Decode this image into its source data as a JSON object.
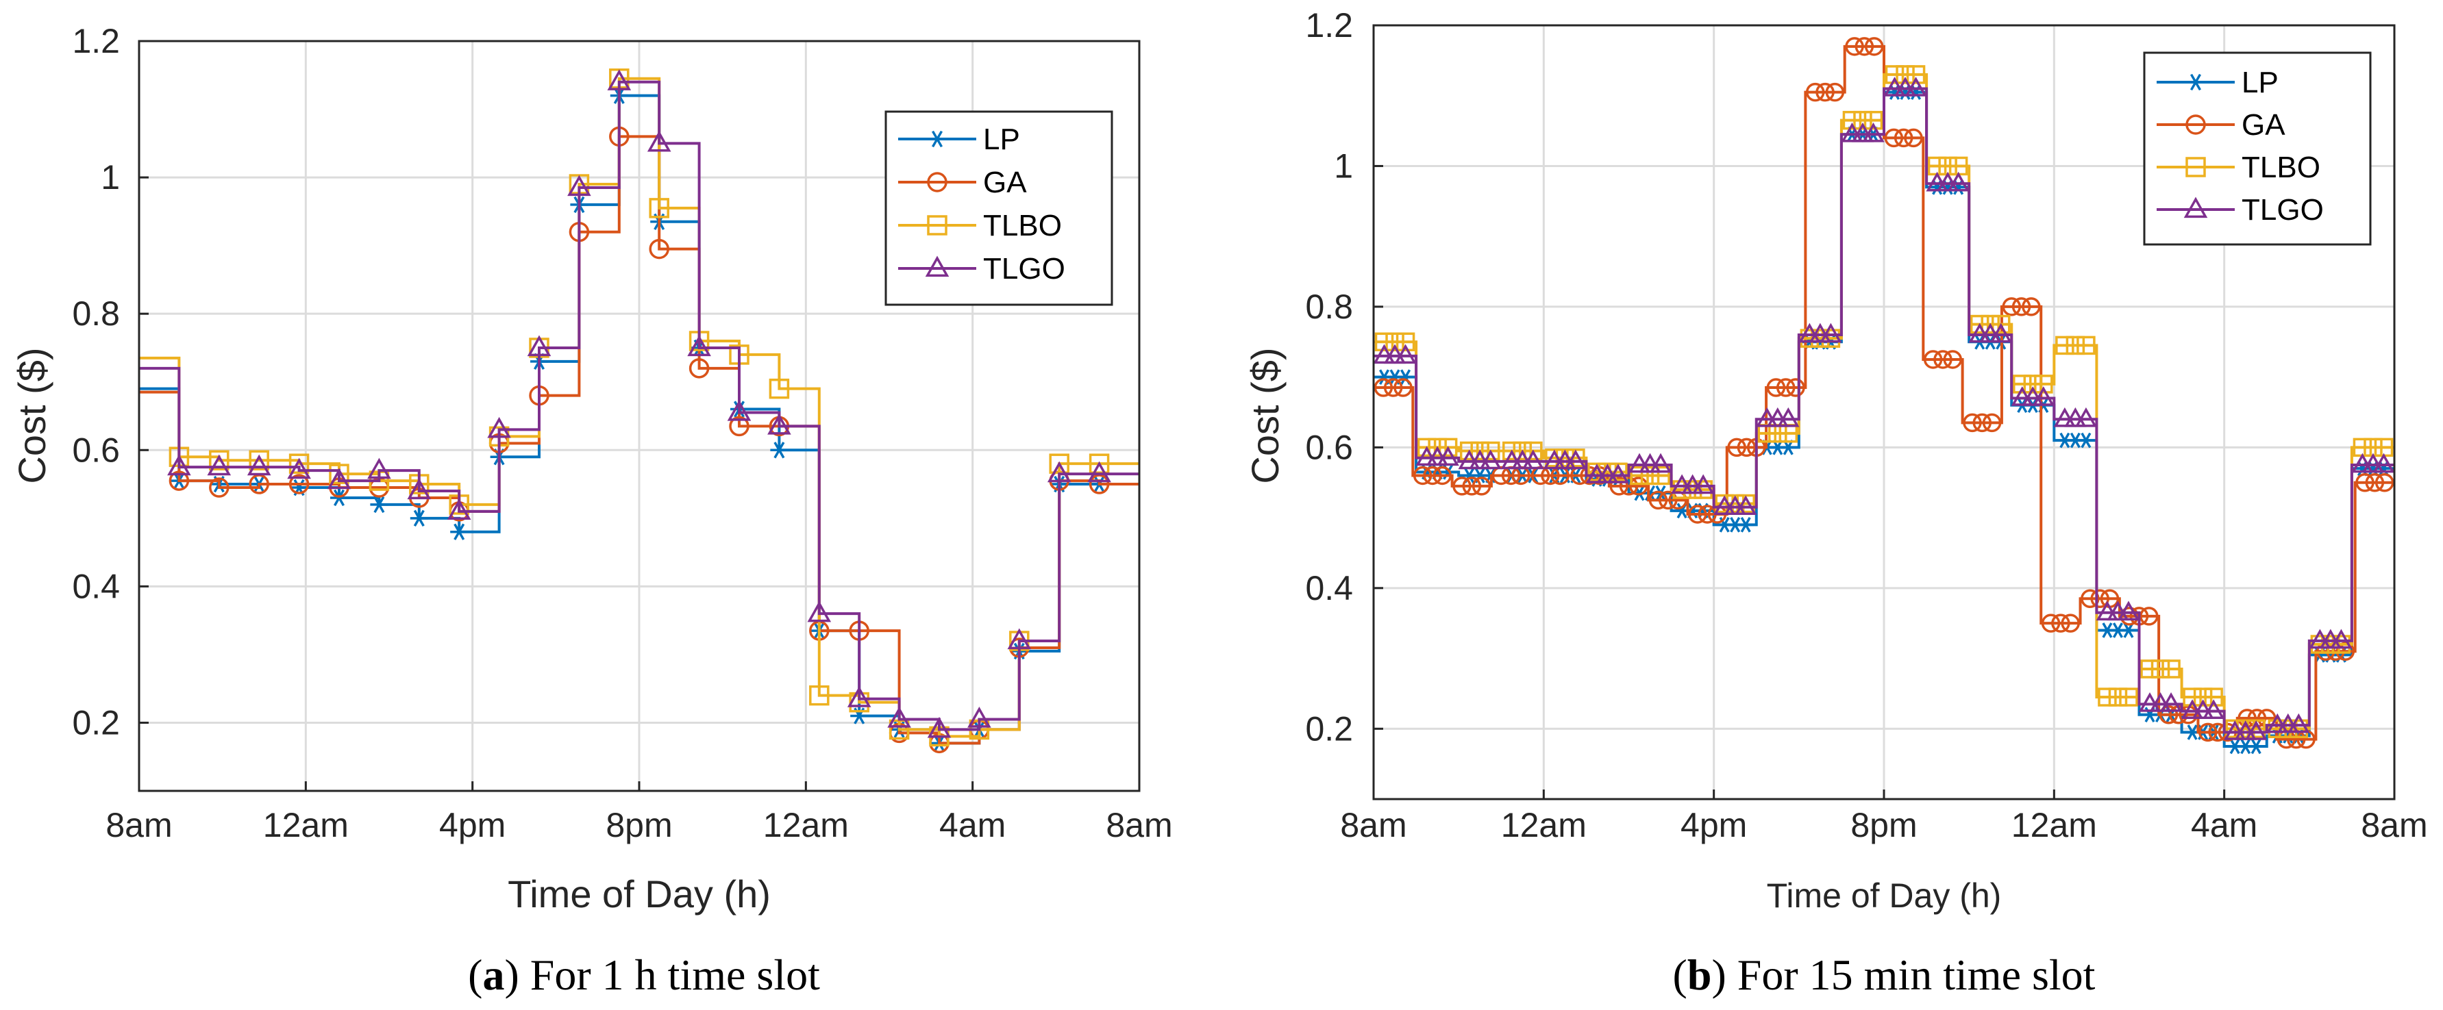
{
  "colors": {
    "LP": "#0072BD",
    "GA": "#D95319",
    "TLBO": "#EDB120",
    "TLGO": "#7E2F8E"
  },
  "captions": [
    {
      "prefix": "(",
      "letter": "a",
      "suffix": ") For 1 h time slot"
    },
    {
      "prefix": "(",
      "letter": "b",
      "suffix": ") For 15 min time slot"
    }
  ],
  "chart_data": [
    {
      "type": "line",
      "step": true,
      "panel": "a",
      "title": "",
      "xlabel": "Time of Day (h)",
      "ylabel": "Cost ($)",
      "xlim": [
        0,
        24
      ],
      "ylim": [
        0.1,
        1.2
      ],
      "xticks": [
        0,
        4,
        8,
        12,
        16,
        20,
        24
      ],
      "xticklabels": [
        "8am",
        "12am",
        "4pm",
        "8pm",
        "12am",
        "4am",
        "8am"
      ],
      "yticks": [
        0.2,
        0.4,
        0.6,
        0.8,
        1.0,
        1.2
      ],
      "yticklabels": [
        "0.2",
        "0.4",
        "0.6",
        "0.8",
        "1",
        "1.2"
      ],
      "legend": {
        "position": "top-right",
        "entries": [
          "LP",
          "GA",
          "TLBO",
          "TLGO"
        ]
      },
      "series": [
        {
          "name": "LP",
          "marker": "star",
          "values": [
            0.69,
            0.555,
            0.55,
            0.55,
            0.545,
            0.53,
            0.52,
            0.5,
            0.48,
            0.59,
            0.73,
            0.96,
            1.12,
            0.935,
            0.75,
            0.66,
            0.6,
            0.335,
            0.21,
            0.19,
            0.17,
            0.19,
            0.305,
            0.55,
            0.55
          ]
        },
        {
          "name": "GA",
          "marker": "circle",
          "values": [
            0.685,
            0.555,
            0.545,
            0.55,
            0.55,
            0.545,
            0.545,
            0.53,
            0.51,
            0.61,
            0.68,
            0.92,
            1.06,
            0.895,
            0.72,
            0.635,
            0.635,
            0.335,
            0.335,
            0.185,
            0.17,
            0.19,
            0.31,
            0.555,
            0.55
          ]
        },
        {
          "name": "TLBO",
          "marker": "square",
          "values": [
            0.735,
            0.59,
            0.585,
            0.585,
            0.58,
            0.565,
            0.555,
            0.55,
            0.52,
            0.62,
            0.75,
            0.99,
            1.145,
            0.955,
            0.76,
            0.74,
            0.69,
            0.24,
            0.23,
            0.19,
            0.18,
            0.19,
            0.32,
            0.58,
            0.58
          ]
        },
        {
          "name": "TLGO",
          "marker": "triangle",
          "values": [
            0.72,
            0.575,
            0.575,
            0.575,
            0.57,
            0.555,
            0.57,
            0.54,
            0.51,
            0.63,
            0.75,
            0.985,
            1.14,
            1.05,
            0.75,
            0.655,
            0.635,
            0.36,
            0.235,
            0.205,
            0.19,
            0.205,
            0.32,
            0.565,
            0.565
          ]
        }
      ]
    },
    {
      "type": "line",
      "step": true,
      "panel": "b",
      "title": "",
      "xlabel": "Time of Day (h)",
      "ylabel": "Cost ($)",
      "xlim": [
        0,
        24
      ],
      "ylim": [
        0.1,
        1.2
      ],
      "xticks": [
        0,
        4,
        8,
        12,
        16,
        20,
        24
      ],
      "xticklabels": [
        "8am",
        "12am",
        "4pm",
        "8pm",
        "12am",
        "4am",
        "8am"
      ],
      "yticks": [
        0.2,
        0.4,
        0.6,
        0.8,
        1.0,
        1.2
      ],
      "yticklabels": [
        "0.2",
        "0.4",
        "0.6",
        "0.8",
        "1",
        "1.2"
      ],
      "legend": {
        "position": "top-right",
        "entries": [
          "LP",
          "GA",
          "TLBO",
          "TLGO"
        ]
      },
      "samples_per_hour": 4,
      "series": [
        {
          "name": "LP",
          "marker": "star",
          "values": [
            0.7,
            0.565,
            0.56,
            0.56,
            0.56,
            0.555,
            0.535,
            0.51,
            0.49,
            0.6,
            0.75,
            1.045,
            1.105,
            0.97,
            0.75,
            0.66,
            0.61,
            0.34,
            0.22,
            0.195,
            0.175,
            0.19,
            0.305,
            0.57
          ]
        },
        {
          "name": "GA",
          "marker": "circle",
          "values": [
            0.685,
            0.56,
            0.545,
            0.56,
            0.56,
            0.56,
            0.545,
            0.525,
            0.505,
            0.6,
            0.685,
            1.105,
            1.17,
            1.04,
            0.725,
            0.635,
            0.8,
            0.35,
            0.385,
            0.36,
            0.22,
            0.195,
            0.215,
            0.185,
            0.31,
            0.55
          ]
        },
        {
          "name": "TLBO",
          "marker": "square",
          "values": [
            0.75,
            0.6,
            0.595,
            0.595,
            0.585,
            0.565,
            0.56,
            0.54,
            0.52,
            0.62,
            0.755,
            1.065,
            1.13,
            1.0,
            0.775,
            0.69,
            0.745,
            0.245,
            0.285,
            0.245,
            0.2,
            0.2,
            0.32,
            0.6
          ]
        },
        {
          "name": "TLGO",
          "marker": "triangle",
          "values": [
            0.73,
            0.585,
            0.58,
            0.58,
            0.58,
            0.56,
            0.575,
            0.545,
            0.515,
            0.64,
            0.76,
            1.045,
            1.11,
            0.975,
            0.76,
            0.67,
            0.64,
            0.365,
            0.235,
            0.225,
            0.195,
            0.205,
            0.325,
            0.575
          ]
        }
      ]
    }
  ]
}
